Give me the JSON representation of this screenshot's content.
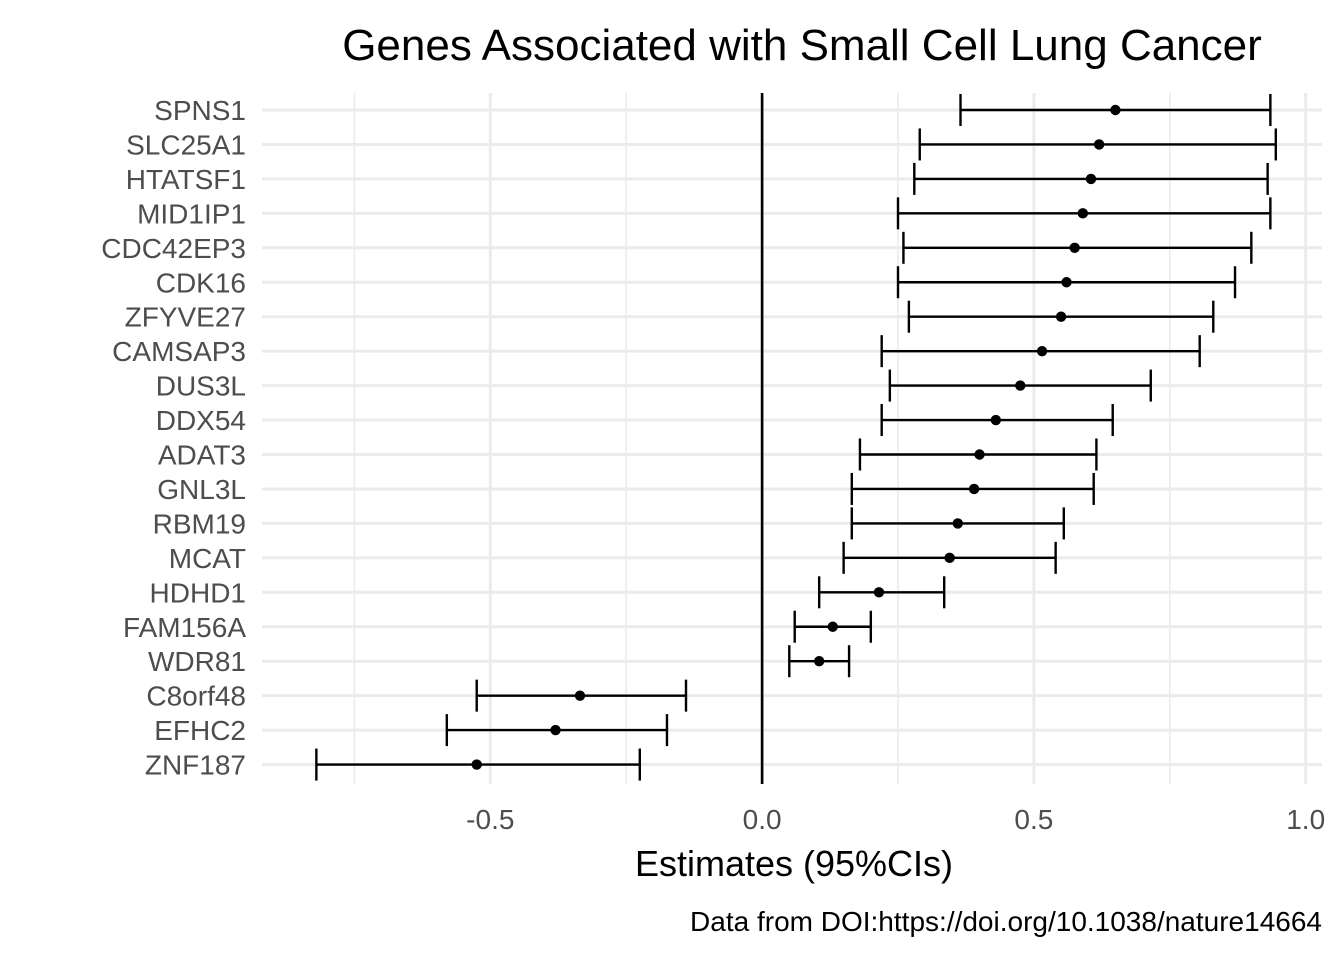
{
  "chart_data": {
    "type": "forest",
    "title": "Genes Associated with Small Cell Lung Cancer",
    "xlabel": "Estimates (95%CIs)",
    "ylabel": "",
    "caption": "Data from DOI:https://doi.org/10.1038/nature14664",
    "xlim": [
      -0.92,
      1.03
    ],
    "x_ticks": [
      -0.5,
      0.0,
      0.5,
      1.0
    ],
    "x_tick_labels": [
      "-0.5",
      "0.0",
      "0.5",
      "1.0"
    ],
    "reference_line": 0.0,
    "grid": true,
    "legend": "none",
    "colors": {
      "points": "#000000",
      "grid": "#ebebeb",
      "reference": "#000000"
    },
    "categories": [
      "SPNS1",
      "SLC25A1",
      "HTATSF1",
      "MID1IP1",
      "CDC42EP3",
      "CDK16",
      "ZFYVE27",
      "CAMSAP3",
      "DUS3L",
      "DDX54",
      "ADAT3",
      "GNL3L",
      "RBM19",
      "MCAT",
      "HDHD1",
      "FAM156A",
      "WDR81",
      "C8orf48",
      "EFHC2",
      "ZNF187"
    ],
    "estimates": [
      0.65,
      0.62,
      0.605,
      0.59,
      0.575,
      0.56,
      0.55,
      0.515,
      0.475,
      0.43,
      0.4,
      0.39,
      0.36,
      0.345,
      0.215,
      0.13,
      0.105,
      -0.335,
      -0.38,
      -0.525
    ],
    "ci_lower": [
      0.365,
      0.29,
      0.28,
      0.25,
      0.26,
      0.25,
      0.27,
      0.22,
      0.235,
      0.22,
      0.18,
      0.165,
      0.165,
      0.15,
      0.105,
      0.06,
      0.05,
      -0.525,
      -0.58,
      -0.82
    ],
    "ci_upper": [
      0.935,
      0.945,
      0.93,
      0.935,
      0.9,
      0.87,
      0.83,
      0.805,
      0.715,
      0.645,
      0.615,
      0.61,
      0.555,
      0.54,
      0.335,
      0.2,
      0.16,
      -0.14,
      -0.175,
      -0.225
    ]
  }
}
